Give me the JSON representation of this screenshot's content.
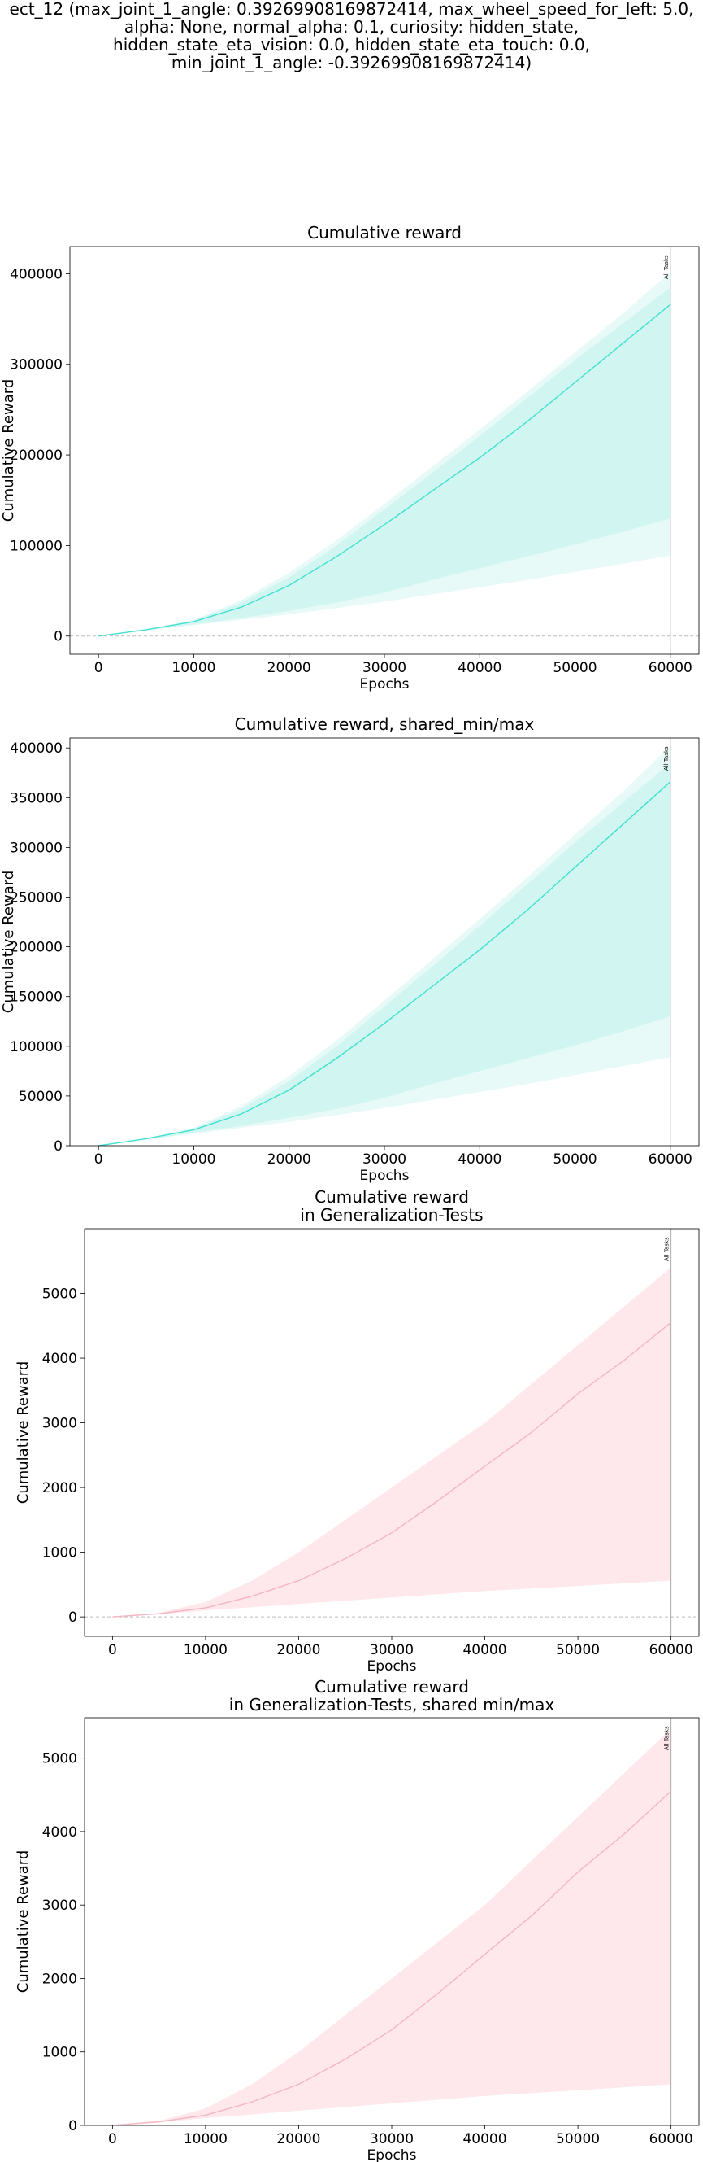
{
  "figure": {
    "suptitle_lines": [
      "ect_12 (max_joint_1_angle: 0.39269908169872414, max_wheel_speed_for_left: 5.0,",
      "alpha: None, normal_alpha: 0.1, curiosity: hidden_state,",
      "hidden_state_eta_vision: 0.0, hidden_state_eta_touch: 0.0,",
      "min_joint_1_angle: -0.39269908169872414)"
    ]
  },
  "colors": {
    "train_line": "#40e0d0",
    "train_fill": "#c9f4ef",
    "test_line": "#f4b6c2",
    "test_fill": "#ffe4e8",
    "axis": "#000000",
    "vline": "#aaaaaa",
    "zero_line": "#bbbbbb"
  },
  "chart_data": [
    {
      "type": "line",
      "title_lines": [
        "Cumulative reward"
      ],
      "xlabel": "Epochs",
      "ylabel": "Cumulative Reward",
      "xlim": [
        -3000,
        63000
      ],
      "ylim": [
        -20000,
        430000
      ],
      "xticks": [
        0,
        10000,
        20000,
        30000,
        40000,
        50000,
        60000
      ],
      "yticks": [
        0,
        100000,
        200000,
        300000,
        400000
      ],
      "zero_line": true,
      "vline": {
        "x": 60000,
        "label": "All Tasks"
      },
      "color_key": "train",
      "series": [
        {
          "x": [
            0,
            5000,
            10000,
            15000,
            20000,
            25000,
            30000,
            35000,
            40000,
            45000,
            50000,
            55000,
            60000
          ],
          "mean": [
            0,
            7000,
            16000,
            32000,
            56000,
            88000,
            123000,
            160000,
            197000,
            237000,
            280000,
            323000,
            366000
          ],
          "inner_upper": [
            0,
            7000,
            17000,
            37000,
            65000,
            100000,
            140000,
            180000,
            221000,
            263000,
            305000,
            345000,
            385000
          ],
          "inner_lower": [
            0,
            6500,
            13000,
            20000,
            28000,
            37000,
            48000,
            62000,
            75000,
            88000,
            101000,
            115000,
            130000
          ],
          "outer_upper": [
            0,
            7500,
            18000,
            40000,
            70000,
            106000,
            146000,
            187000,
            228000,
            270000,
            313000,
            356000,
            402000
          ],
          "outer_lower": [
            0,
            6000,
            12000,
            18000,
            24000,
            31000,
            38000,
            46000,
            54000,
            62000,
            71000,
            80000,
            89000
          ]
        }
      ]
    },
    {
      "type": "line",
      "title_lines": [
        "Cumulative reward, shared_min/max"
      ],
      "xlabel": "Epochs",
      "ylabel": "Cumulative Reward",
      "xlim": [
        -3000,
        63000
      ],
      "ylim": [
        0,
        410000
      ],
      "xticks": [
        0,
        10000,
        20000,
        30000,
        40000,
        50000,
        60000
      ],
      "yticks": [
        0,
        50000,
        100000,
        150000,
        200000,
        250000,
        300000,
        350000,
        400000
      ],
      "zero_line": false,
      "vline": {
        "x": 60000,
        "label": "All Tasks"
      },
      "color_key": "train",
      "series": [
        {
          "x": [
            0,
            5000,
            10000,
            15000,
            20000,
            25000,
            30000,
            35000,
            40000,
            45000,
            50000,
            55000,
            60000
          ],
          "mean": [
            0,
            7000,
            16000,
            32000,
            56000,
            88000,
            123000,
            160000,
            197000,
            237000,
            280000,
            323000,
            366000
          ],
          "inner_upper": [
            0,
            7000,
            17000,
            37000,
            65000,
            100000,
            140000,
            180000,
            221000,
            263000,
            305000,
            345000,
            385000
          ],
          "inner_lower": [
            0,
            6500,
            13000,
            20000,
            28000,
            37000,
            48000,
            62000,
            75000,
            88000,
            101000,
            115000,
            130000
          ],
          "outer_upper": [
            0,
            7500,
            18000,
            40000,
            70000,
            106000,
            146000,
            187000,
            228000,
            270000,
            313000,
            356000,
            402000
          ],
          "outer_lower": [
            0,
            6000,
            12000,
            18000,
            24000,
            31000,
            38000,
            46000,
            54000,
            62000,
            71000,
            80000,
            89000
          ]
        }
      ]
    },
    {
      "type": "line",
      "title_lines": [
        "Cumulative reward",
        "in Generalization-Tests"
      ],
      "xlabel": "Epochs",
      "ylabel": "Cumulative Reward",
      "xlim": [
        -3000,
        63000
      ],
      "ylim": [
        -300,
        6000
      ],
      "xticks": [
        0,
        10000,
        20000,
        30000,
        40000,
        50000,
        60000
      ],
      "yticks": [
        0,
        1000,
        2000,
        3000,
        4000,
        5000
      ],
      "zero_line": true,
      "vline": {
        "x": 60000,
        "label": "All Tasks"
      },
      "color_key": "test",
      "series": [
        {
          "x": [
            0,
            5000,
            10000,
            15000,
            20000,
            25000,
            30000,
            35000,
            40000,
            45000,
            50000,
            55000,
            60000
          ],
          "mean": [
            0,
            50,
            140,
            320,
            560,
            900,
            1300,
            1800,
            2330,
            2850,
            3450,
            3970,
            4550
          ],
          "inner_upper": [
            0,
            60,
            230,
            560,
            1000,
            1500,
            2000,
            2500,
            3000,
            3600,
            4200,
            4800,
            5400
          ],
          "inner_lower": [
            0,
            40,
            100,
            150,
            200,
            250,
            300,
            350,
            400,
            440,
            480,
            520,
            560
          ],
          "outer_upper": [
            0,
            60,
            230,
            560,
            1000,
            1500,
            2000,
            2500,
            3000,
            3600,
            4200,
            4800,
            5400
          ],
          "outer_lower": [
            0,
            40,
            100,
            150,
            200,
            250,
            300,
            350,
            400,
            440,
            480,
            520,
            560
          ]
        }
      ]
    },
    {
      "type": "line",
      "title_lines": [
        "Cumulative reward",
        "in Generalization-Tests, shared min/max"
      ],
      "xlabel": "Epochs",
      "ylabel": "Cumulative Reward",
      "xlim": [
        -3000,
        63000
      ],
      "ylim": [
        0,
        5550
      ],
      "xticks": [
        0,
        10000,
        20000,
        30000,
        40000,
        50000,
        60000
      ],
      "yticks": [
        0,
        1000,
        2000,
        3000,
        4000,
        5000
      ],
      "zero_line": false,
      "vline": {
        "x": 60000,
        "label": "All Tasks"
      },
      "color_key": "test",
      "series": [
        {
          "x": [
            0,
            5000,
            10000,
            15000,
            20000,
            25000,
            30000,
            35000,
            40000,
            45000,
            50000,
            55000,
            60000
          ],
          "mean": [
            0,
            50,
            140,
            320,
            560,
            900,
            1300,
            1800,
            2330,
            2850,
            3450,
            3970,
            4550
          ],
          "inner_upper": [
            0,
            60,
            230,
            560,
            1000,
            1500,
            2000,
            2500,
            3000,
            3600,
            4200,
            4800,
            5400
          ],
          "inner_lower": [
            0,
            40,
            100,
            150,
            200,
            250,
            300,
            350,
            400,
            440,
            480,
            520,
            560
          ],
          "outer_upper": [
            0,
            60,
            230,
            560,
            1000,
            1500,
            2000,
            2500,
            3000,
            3600,
            4200,
            4800,
            5400
          ],
          "outer_lower": [
            0,
            40,
            100,
            150,
            200,
            250,
            300,
            350,
            400,
            440,
            480,
            520,
            560
          ]
        }
      ]
    }
  ]
}
